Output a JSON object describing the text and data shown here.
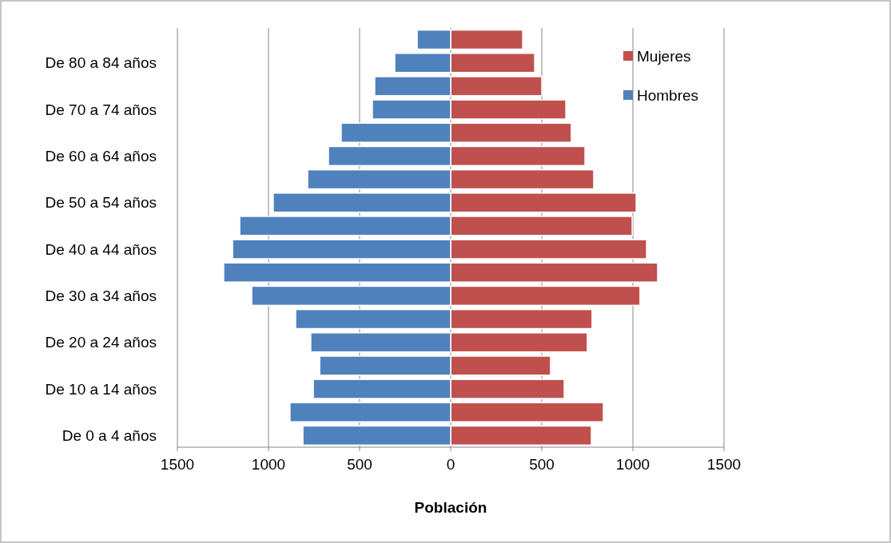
{
  "chart_data": {
    "type": "bar",
    "orientation": "horizontal",
    "stacked": true,
    "xlabel": "Población",
    "categories": [
      null,
      "De 80 a 84 años",
      null,
      "De 70 a 74 años",
      null,
      "De 60 a 64 años",
      null,
      "De 50 a 54 años",
      null,
      "De 40 a 44 años",
      null,
      "De 30 a 34 años",
      null,
      "De 20 a 24 años",
      null,
      "De 10 a 14 años",
      null,
      "De 0 a 4 años"
    ],
    "series": [
      {
        "name": "Mujeres",
        "color": "#c0504d",
        "values": [
          395,
          461,
          500,
          632,
          662,
          737,
          785,
          1018,
          996,
          1075,
          1136,
          1039,
          776,
          750,
          548,
          623,
          838,
          772
        ]
      },
      {
        "name": "Hombres",
        "color": "#4f81bd",
        "values": [
          -184,
          -307,
          -417,
          -430,
          -601,
          -671,
          -785,
          -974,
          -1158,
          -1197,
          -1246,
          -1092,
          -851,
          -768,
          -719,
          -754,
          -882,
          -811
        ]
      }
    ],
    "xlim": [
      -1500,
      1500
    ],
    "xticks": [
      {
        "value": -1500,
        "label": "1500"
      },
      {
        "value": -1000,
        "label": "1000"
      },
      {
        "value": -500,
        "label": "500"
      },
      0,
      500,
      1000,
      1500
    ],
    "grid": "x",
    "legend": "top right"
  }
}
